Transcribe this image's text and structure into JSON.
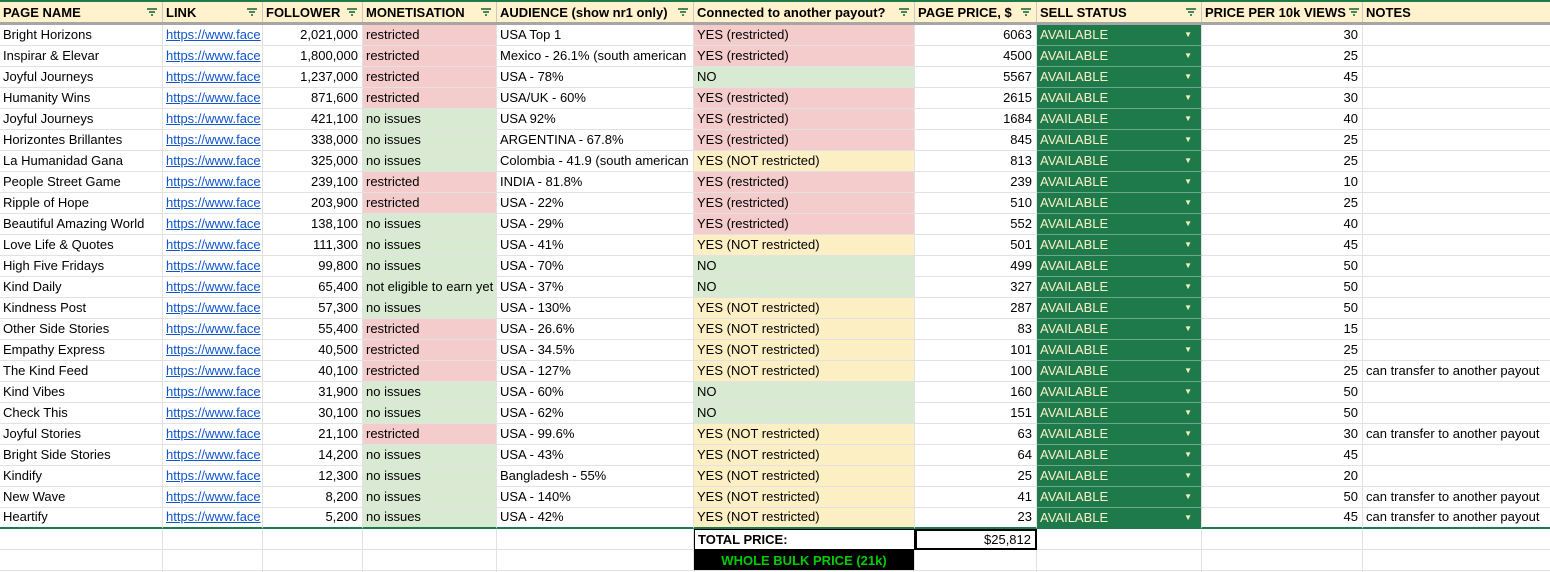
{
  "colors": {
    "header_bg": "#FFF2CC",
    "restricted_bg": "#F4CCCC",
    "no_issues_bg": "#D9EAD3",
    "not_restricted_bg": "#FCEFC4",
    "sell_status_bg": "#1E7A4A",
    "sell_status_text": "#FAF0C8",
    "link_color": "#1155CC",
    "bulk_banner_bg": "#000000",
    "bulk_banner_text": "#00CC00",
    "accent_green_border": "#1E7A4A"
  },
  "columns": [
    {
      "key": "page_name",
      "label": "PAGE NAME",
      "filter": true
    },
    {
      "key": "link",
      "label": "LINK",
      "filter": true
    },
    {
      "key": "follower",
      "label": "FOLLOWER",
      "filter": true
    },
    {
      "key": "monetisation",
      "label": "MONETISATION",
      "filter": true
    },
    {
      "key": "audience",
      "label": "AUDIENCE (show nr1 only)",
      "filter": true
    },
    {
      "key": "connected",
      "label": "Connected to another payout?",
      "filter": true
    },
    {
      "key": "page_price",
      "label": "PAGE PRICE, $",
      "filter": true
    },
    {
      "key": "sell_status",
      "label": "SELL STATUS",
      "filter": true
    },
    {
      "key": "price_per_10k",
      "label": "PRICE PER 10k VIEWS",
      "filter": true
    },
    {
      "key": "notes",
      "label": "NOTES",
      "filter": false
    }
  ],
  "rows": [
    {
      "name": "Bright Horizons",
      "link": "https://www.face",
      "follower": "2,021,000",
      "mon": "restricted",
      "mon_s": "bad",
      "aud": "USA Top 1",
      "con": "YES (restricted)",
      "con_s": "bad",
      "price": "6063",
      "sell": "AVAILABLE",
      "p10k": "30",
      "notes": ""
    },
    {
      "name": "Inspirar & Elevar",
      "link": "https://www.face",
      "follower": "1,800,000",
      "mon": "restricted",
      "mon_s": "bad",
      "aud": "Mexico - 26.1% (south american",
      "con": "YES (restricted)",
      "con_s": "bad",
      "price": "4500",
      "sell": "AVAILABLE",
      "p10k": "25",
      "notes": ""
    },
    {
      "name": "Joyful Journeys",
      "link": "https://www.face",
      "follower": "1,237,000",
      "mon": "restricted",
      "mon_s": "bad",
      "aud": "USA - 78%",
      "con": "NO",
      "con_s": "good",
      "price": "5567",
      "sell": "AVAILABLE",
      "p10k": "45",
      "notes": ""
    },
    {
      "name": "Humanity Wins",
      "link": "https://www.face",
      "follower": "871,600",
      "mon": "restricted",
      "mon_s": "bad",
      "aud": "USA/UK - 60%",
      "con": "YES (restricted)",
      "con_s": "bad",
      "price": "2615",
      "sell": "AVAILABLE",
      "p10k": "30",
      "notes": ""
    },
    {
      "name": "Joyful Journeys",
      "link": "https://www.face",
      "follower": "421,100",
      "mon": "no issues",
      "mon_s": "good",
      "aud": "USA 92%",
      "con": "YES (restricted)",
      "con_s": "bad",
      "price": "1684",
      "sell": "AVAILABLE",
      "p10k": "40",
      "notes": ""
    },
    {
      "name": "Horizontes Brillantes",
      "link": "https://www.face",
      "follower": "338,000",
      "mon": "no issues",
      "mon_s": "good",
      "aud": "ARGENTINA - 67.8%",
      "con": "YES (restricted)",
      "con_s": "bad",
      "price": "845",
      "sell": "AVAILABLE",
      "p10k": "25",
      "notes": ""
    },
    {
      "name": "La Humanidad Gana",
      "link": "https://www.face",
      "follower": "325,000",
      "mon": "no issues",
      "mon_s": "good",
      "aud": "Colombia - 41.9 (south american",
      "con": "YES (NOT restricted)",
      "con_s": "warn",
      "price": "813",
      "sell": "AVAILABLE",
      "p10k": "25",
      "notes": ""
    },
    {
      "name": "People Street Game",
      "link": "https://www.face",
      "follower": "239,100",
      "mon": "restricted",
      "mon_s": "bad",
      "aud": "INDIA - 81.8%",
      "con": "YES (restricted)",
      "con_s": "bad",
      "price": "239",
      "sell": "AVAILABLE",
      "p10k": "10",
      "notes": ""
    },
    {
      "name": "Ripple of Hope",
      "link": "https://www.face",
      "follower": "203,900",
      "mon": "restricted",
      "mon_s": "bad",
      "aud": "USA - 22%",
      "con": "YES (restricted)",
      "con_s": "bad",
      "price": "510",
      "sell": "AVAILABLE",
      "p10k": "25",
      "notes": ""
    },
    {
      "name": "Beautiful Amazing World",
      "link": "https://www.face",
      "follower": "138,100",
      "mon": "no issues",
      "mon_s": "good",
      "aud": "USA - 29%",
      "con": "YES (restricted)",
      "con_s": "bad",
      "price": "552",
      "sell": "AVAILABLE",
      "p10k": "40",
      "notes": ""
    },
    {
      "name": "Love Life & Quotes",
      "link": "https://www.face",
      "follower": "111,300",
      "mon": "no issues",
      "mon_s": "good",
      "aud": "USA - 41%",
      "con": "YES (NOT restricted)",
      "con_s": "warn",
      "price": "501",
      "sell": "AVAILABLE",
      "p10k": "45",
      "notes": ""
    },
    {
      "name": "High Five Fridays",
      "link": "https://www.face",
      "follower": "99,800",
      "mon": "no issues",
      "mon_s": "good",
      "aud": "USA - 70%",
      "con": "NO",
      "con_s": "good",
      "price": "499",
      "sell": "AVAILABLE",
      "p10k": "50",
      "notes": ""
    },
    {
      "name": "Kind Daily",
      "link": "https://www.face",
      "follower": "65,400",
      "mon": "not eligible to earn yet",
      "mon_s": "good",
      "aud": "USA - 37%",
      "con": "NO",
      "con_s": "good",
      "price": "327",
      "sell": "AVAILABLE",
      "p10k": "50",
      "notes": ""
    },
    {
      "name": "Kindness Post",
      "link": "https://www.face",
      "follower": "57,300",
      "mon": "no issues",
      "mon_s": "good",
      "aud": "USA - 130%",
      "con": "YES (NOT restricted)",
      "con_s": "warn",
      "price": "287",
      "sell": "AVAILABLE",
      "p10k": "50",
      "notes": ""
    },
    {
      "name": "Other Side Stories",
      "link": "https://www.face",
      "follower": "55,400",
      "mon": "restricted",
      "mon_s": "bad",
      "aud": "USA - 26.6%",
      "con": "YES (NOT restricted)",
      "con_s": "warn",
      "price": "83",
      "sell": "AVAILABLE",
      "p10k": "15",
      "notes": ""
    },
    {
      "name": "Empathy Express",
      "link": "https://www.face",
      "follower": "40,500",
      "mon": "restricted",
      "mon_s": "bad",
      "aud": "USA - 34.5%",
      "con": "YES (NOT restricted)",
      "con_s": "warn",
      "price": "101",
      "sell": "AVAILABLE",
      "p10k": "25",
      "notes": ""
    },
    {
      "name": "The Kind Feed",
      "link": "https://www.face",
      "follower": "40,100",
      "mon": "restricted",
      "mon_s": "bad",
      "aud": "USA - 127%",
      "con": "YES (NOT restricted)",
      "con_s": "warn",
      "price": "100",
      "sell": "AVAILABLE",
      "p10k": "25",
      "notes": "can transfer to another payout"
    },
    {
      "name": "Kind Vibes",
      "link": "https://www.face",
      "follower": "31,900",
      "mon": "no issues",
      "mon_s": "good",
      "aud": "USA - 60%",
      "con": "NO",
      "con_s": "good",
      "price": "160",
      "sell": "AVAILABLE",
      "p10k": "50",
      "notes": ""
    },
    {
      "name": "Check This",
      "link": "https://www.face",
      "follower": "30,100",
      "mon": "no issues",
      "mon_s": "good",
      "aud": "USA - 62%",
      "con": "NO",
      "con_s": "good",
      "price": "151",
      "sell": "AVAILABLE",
      "p10k": "50",
      "notes": ""
    },
    {
      "name": "Joyful Stories",
      "link": "https://www.face",
      "follower": "21,100",
      "mon": "restricted",
      "mon_s": "bad",
      "aud": "USA - 99.6%",
      "con": "YES (NOT restricted)",
      "con_s": "warn",
      "price": "63",
      "sell": "AVAILABLE",
      "p10k": "30",
      "notes": "can transfer to another payout"
    },
    {
      "name": "Bright Side Stories",
      "link": "https://www.face",
      "follower": "14,200",
      "mon": "no issues",
      "mon_s": "good",
      "aud": "USA - 43%",
      "con": "YES (NOT restricted)",
      "con_s": "warn",
      "price": "64",
      "sell": "AVAILABLE",
      "p10k": "45",
      "notes": ""
    },
    {
      "name": "Kindify",
      "link": "https://www.face",
      "follower": "12,300",
      "mon": "no issues",
      "mon_s": "good",
      "aud": "Bangladesh - 55%",
      "con": "YES (NOT restricted)",
      "con_s": "warn",
      "price": "25",
      "sell": "AVAILABLE",
      "p10k": "20",
      "notes": ""
    },
    {
      "name": "New Wave",
      "link": "https://www.face",
      "follower": "8,200",
      "mon": "no issues",
      "mon_s": "good",
      "aud": "USA - 140%",
      "con": "YES (NOT restricted)",
      "con_s": "warn",
      "price": "41",
      "sell": "AVAILABLE",
      "p10k": "50",
      "notes": "can transfer to another payout"
    },
    {
      "name": "Heartify",
      "link": "https://www.face",
      "follower": "5,200",
      "mon": "no issues",
      "mon_s": "good",
      "aud": "USA - 42%",
      "con": "YES (NOT restricted)",
      "con_s": "warn",
      "price": "23",
      "sell": "AVAILABLE",
      "p10k": "45",
      "notes": "can transfer to another payout"
    }
  ],
  "summary": {
    "total_label": "TOTAL PRICE:",
    "total_value": "$25,812",
    "bulk_label": "WHOLE BULK PRICE (21k)"
  }
}
